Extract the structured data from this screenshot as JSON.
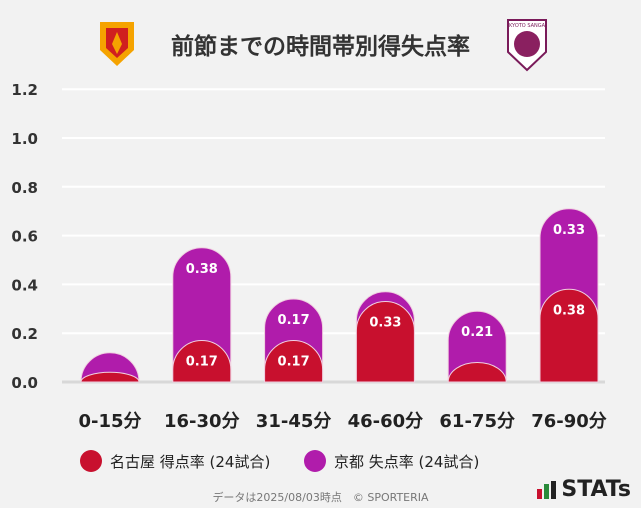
{
  "title": "前節までの時間帯別得失点率",
  "chart_data": {
    "type": "bar",
    "stacked": true,
    "categories": [
      "0-15分",
      "16-30分",
      "31-45分",
      "46-60分",
      "61-75分",
      "76-90分"
    ],
    "series": [
      {
        "name": "名古屋 得点率 (24試合)",
        "color": "#c8102e",
        "values": [
          0.04,
          0.17,
          0.17,
          0.33,
          0.08,
          0.38
        ]
      },
      {
        "name": "京都 失点率 (24試合)",
        "color": "#b01cab",
        "values": [
          0.08,
          0.38,
          0.17,
          0.04,
          0.21,
          0.33
        ]
      }
    ],
    "ylim": [
      0,
      1.2
    ],
    "yticks": [
      "0.0",
      "0.2",
      "0.4",
      "0.6",
      "0.8",
      "1.0",
      "1.2"
    ],
    "grid": true,
    "legend_position": "bottom"
  },
  "footer": "データは2025/08/03時点　© SPORTERIA",
  "brand": "STATs",
  "logos": {
    "left": "Nagoya Grampus",
    "right": "KYOTO SANGA"
  }
}
